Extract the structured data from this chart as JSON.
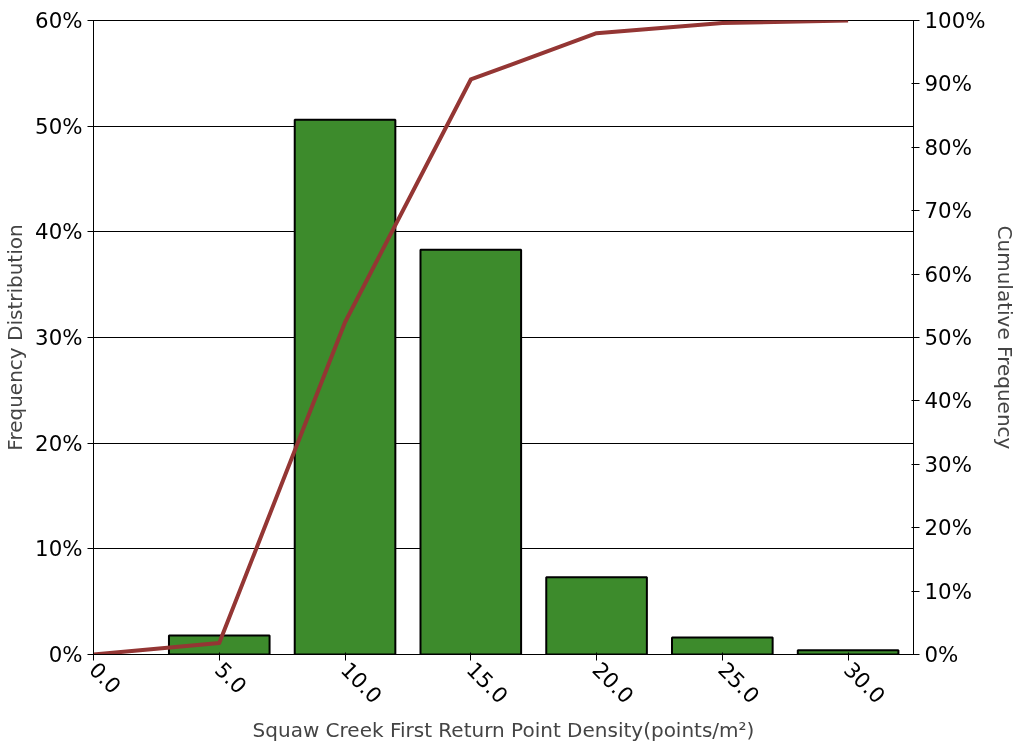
{
  "chart_data": {
    "type": "bar",
    "xlabel": "Squaw Creek First Return Point Density(points/m²)",
    "ylabel": "Frequency Distribution",
    "y2label": "Cumulative Frequency",
    "xlim": [
      0,
      32.6
    ],
    "xticks": [
      {
        "value": 0,
        "label": "0.0"
      },
      {
        "value": 5,
        "label": "5.0"
      },
      {
        "value": 10,
        "label": "10.0"
      },
      {
        "value": 15,
        "label": "15.0"
      },
      {
        "value": 20,
        "label": "20.0"
      },
      {
        "value": 25,
        "label": "25.0"
      },
      {
        "value": 30,
        "label": "30.0"
      }
    ],
    "ylim": [
      0,
      60
    ],
    "yticks": [
      {
        "value": 0,
        "label": "0%"
      },
      {
        "value": 10,
        "label": "10%"
      },
      {
        "value": 20,
        "label": "20%"
      },
      {
        "value": 30,
        "label": "30%"
      },
      {
        "value": 40,
        "label": "40%"
      },
      {
        "value": 50,
        "label": "50%"
      },
      {
        "value": 60,
        "label": "60%"
      }
    ],
    "y2lim": [
      0,
      100
    ],
    "y2ticks": [
      {
        "value": 0,
        "label": "0%"
      },
      {
        "value": 10,
        "label": "10%"
      },
      {
        "value": 20,
        "label": "20%"
      },
      {
        "value": 30,
        "label": "30%"
      },
      {
        "value": 40,
        "label": "40%"
      },
      {
        "value": 50,
        "label": "50%"
      },
      {
        "value": 60,
        "label": "60%"
      },
      {
        "value": 70,
        "label": "70%"
      },
      {
        "value": 80,
        "label": "80%"
      },
      {
        "value": 90,
        "label": "90%"
      },
      {
        "value": 100,
        "label": "100%"
      }
    ],
    "grid": "y",
    "series": [
      {
        "color": "#3d8b2c",
        "x": [
          5,
          10,
          15,
          20,
          25,
          30
        ],
        "values": [
          1.8,
          50.6,
          38.3,
          7.3,
          1.6,
          0.4
        ]
      },
      {
        "type": "line",
        "axis": "y2",
        "color": "#943634",
        "x": [
          0,
          5,
          10,
          15,
          20,
          25,
          30
        ],
        "values": [
          0,
          1.8,
          52.4,
          90.7,
          98,
          99.6,
          100
        ]
      }
    ]
  }
}
